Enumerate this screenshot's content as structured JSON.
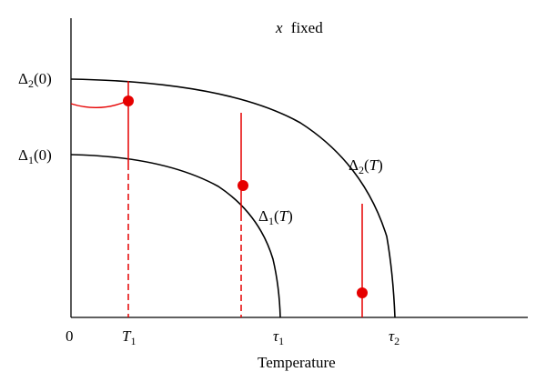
{
  "colors": {
    "curve": "#000000",
    "marker": "#e60000",
    "axis": "#000000"
  },
  "header": {
    "var": "x",
    "word": "fixed"
  },
  "axis": {
    "xlabel": "Temperature",
    "origin": "0",
    "ticks": {
      "T1": {
        "main": "T",
        "sub": "1"
      },
      "tau1": {
        "main": "τ",
        "sub": "1"
      },
      "tau2": {
        "main": "τ",
        "sub": "2"
      }
    }
  },
  "labels": {
    "delta2_0": {
      "main": "Δ",
      "sub": "2",
      "arg": "(0)"
    },
    "delta1_0": {
      "main": "Δ",
      "sub": "1",
      "arg": "(0)"
    },
    "delta2_T": {
      "main": "Δ",
      "sub": "2",
      "open": "(",
      "var": "T",
      "close": ")"
    },
    "delta1_T": {
      "main": "Δ",
      "sub": "1",
      "open": "(",
      "var": "T",
      "close": ")"
    }
  }
}
